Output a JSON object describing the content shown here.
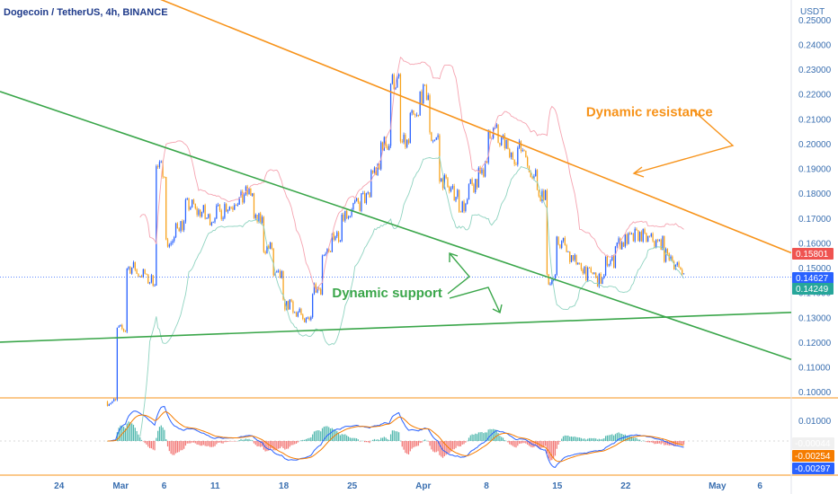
{
  "header": {
    "title": "Dogecoin / TetherUS, 4h, BINANCE",
    "currency": "USDT"
  },
  "colors": {
    "up": "#2962ff",
    "down": "#f7a21b",
    "resistance": "#f7931a",
    "support": "#3aa64a",
    "bb_upper": "#f5a3b0",
    "bb_lower": "#8fd3c0",
    "macd": "#2962ff",
    "signal": "#f57c00",
    "hist_pos": "#26a69a",
    "hist_neg": "#ef5350",
    "axis_text": "#3a6fb0"
  },
  "chart_data": [
    {
      "type": "candlestick",
      "title": "Dogecoin / TetherUS, 4h, BINANCE",
      "ylabel": "USDT",
      "y_ticks": [
        "0.25000",
        "0.24000",
        "0.23000",
        "0.22000",
        "0.21000",
        "0.20000",
        "0.19000",
        "0.18000",
        "0.17000",
        "0.16000",
        "0.15000",
        "0.14000",
        "0.13000",
        "0.12000",
        "0.11000",
        "0.10000"
      ],
      "x_ticks": [
        "24",
        "Mar",
        "6",
        "11",
        "18",
        "25",
        "Apr",
        "8",
        "15",
        "22",
        "May",
        "6"
      ],
      "ylim": [
        0.095,
        0.255
      ],
      "price_path": [
        [
          "2024-02-29",
          0.096
        ],
        [
          "2024-03-01",
          0.125
        ],
        [
          "2024-03-02",
          0.15
        ],
        [
          "2024-03-04",
          0.145
        ],
        [
          "2024-03-05",
          0.19
        ],
        [
          "2024-03-06",
          0.16
        ],
        [
          "2024-03-08",
          0.175
        ],
        [
          "2024-03-10",
          0.17
        ],
        [
          "2024-03-12",
          0.175
        ],
        [
          "2024-03-14",
          0.18
        ],
        [
          "2024-03-16",
          0.158
        ],
        [
          "2024-03-18",
          0.135
        ],
        [
          "2024-03-20",
          0.128
        ],
        [
          "2024-03-22",
          0.155
        ],
        [
          "2024-03-24",
          0.172
        ],
        [
          "2024-03-26",
          0.178
        ],
        [
          "2024-03-28",
          0.2
        ],
        [
          "2024-03-29",
          0.225
        ],
        [
          "2024-03-30",
          0.2
        ],
        [
          "2024-04-01",
          0.22
        ],
        [
          "2024-04-03",
          0.185
        ],
        [
          "2024-04-05",
          0.175
        ],
        [
          "2024-04-07",
          0.19
        ],
        [
          "2024-04-08",
          0.205
        ],
        [
          "2024-04-10",
          0.195
        ],
        [
          "2024-04-11",
          0.198
        ],
        [
          "2024-04-13",
          0.18
        ],
        [
          "2024-04-14",
          0.145
        ],
        [
          "2024-04-15",
          0.16
        ],
        [
          "2024-04-17",
          0.15
        ],
        [
          "2024-04-19",
          0.145
        ],
        [
          "2024-04-21",
          0.16
        ],
        [
          "2024-04-23",
          0.163
        ],
        [
          "2024-04-25",
          0.16
        ],
        [
          "2024-04-27",
          0.15
        ],
        [
          "2024-04-28",
          0.1463
        ]
      ],
      "last_price": "0.14627",
      "badges": [
        {
          "label": "0.15801",
          "color": "#ef5350"
        },
        {
          "label": "0.14627",
          "color": "#2962ff"
        },
        {
          "label": "0.14249",
          "color": "#26a69a"
        }
      ],
      "trendlines": [
        {
          "name": "Dynamic resistance",
          "color": "#f7931a",
          "points": [
            [
              "2024-03-03",
              0.262
            ],
            [
              "2024-05-09",
              0.156
            ]
          ]
        },
        {
          "name": "",
          "color": "#3aa64a",
          "points": [
            [
              "2024-02-18",
              0.221
            ],
            [
              "2024-05-09",
              0.113
            ]
          ]
        },
        {
          "name": "Dynamic support",
          "color": "#3aa64a",
          "points": [
            [
              "2024-02-18",
              0.12
            ],
            [
              "2024-05-09",
              0.132
            ]
          ]
        }
      ],
      "annotations": [
        {
          "text": "Dynamic resistance",
          "color": "#f7931a",
          "at": [
            "2024-04-18",
            0.211
          ]
        },
        {
          "text": "Dynamic support",
          "color": "#3aa64a",
          "at": [
            "2024-03-23",
            0.138
          ]
        }
      ]
    },
    {
      "type": "macd",
      "y_ticks": [
        "0.01000",
        "0.00000"
      ],
      "badges": [
        {
          "label": "-0.00044",
          "color": "#f0f0f0",
          "text_color": "#131722"
        },
        {
          "label": "-0.00254",
          "color": "#f57c00",
          "text_color": "#ffffff"
        },
        {
          "label": "-0.00297",
          "color": "#2962ff",
          "text_color": "#ffffff"
        }
      ]
    }
  ]
}
